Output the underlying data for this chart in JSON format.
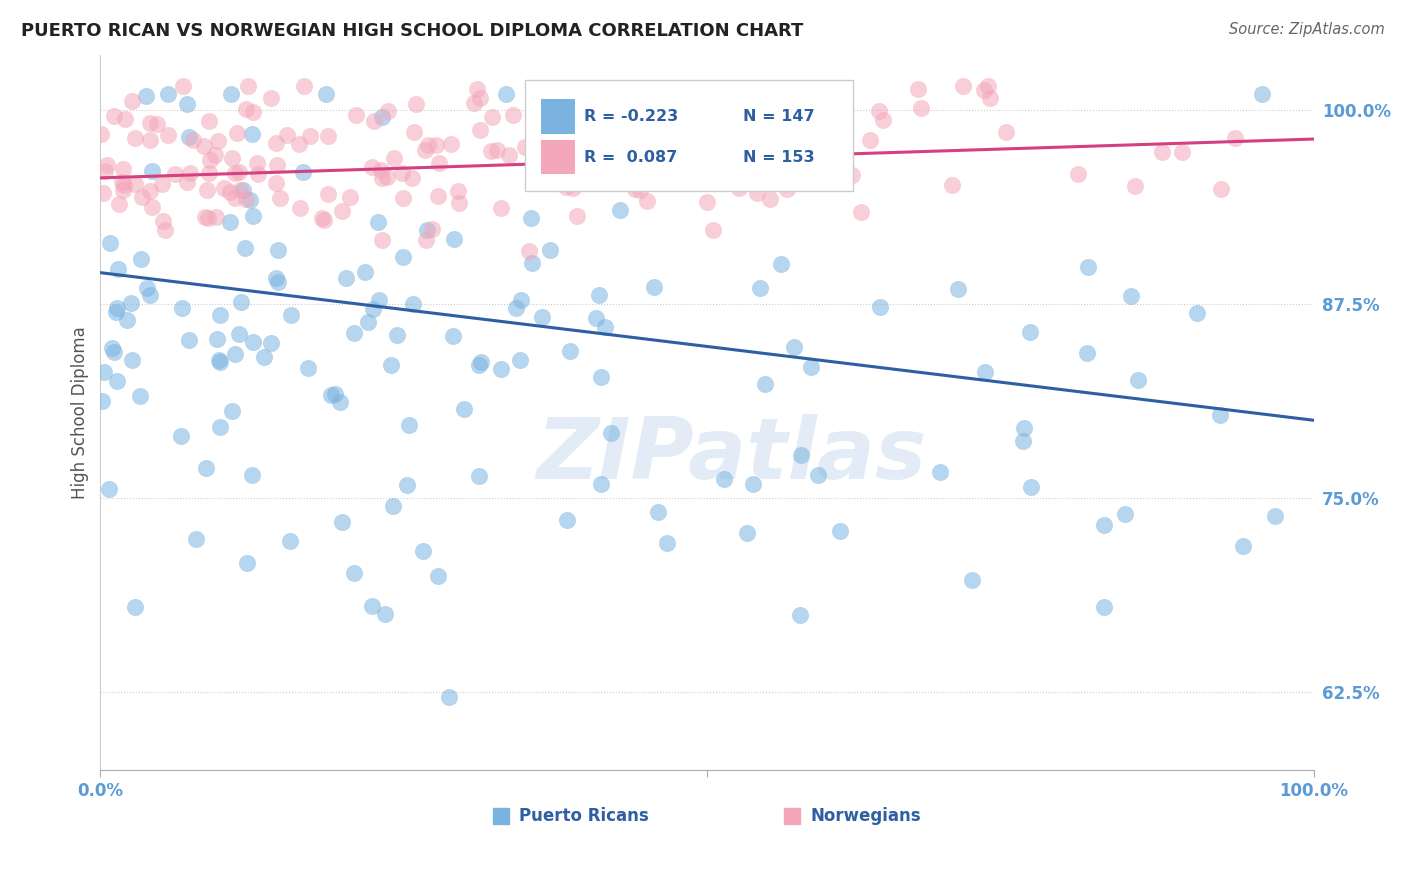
{
  "title": "PUERTO RICAN VS NORWEGIAN HIGH SCHOOL DIPLOMA CORRELATION CHART",
  "source": "Source: ZipAtlas.com",
  "ylabel": "High School Diploma",
  "xlim": [
    0.0,
    1.0
  ],
  "ylim": [
    0.575,
    1.035
  ],
  "yticks": [
    0.625,
    0.75,
    0.875,
    1.0
  ],
  "ytick_labels": [
    "62.5%",
    "75.0%",
    "87.5%",
    "100.0%"
  ],
  "blue_color": "#7ab3e0",
  "pink_color": "#f4a7b9",
  "blue_line_color": "#2e5fa3",
  "pink_line_color": "#d44080",
  "blue_intercept": 0.895,
  "blue_slope": -0.095,
  "pink_intercept": 0.956,
  "pink_slope": 0.025,
  "watermark": "ZIPatlas",
  "background_color": "#ffffff",
  "grid_color": "#cccccc",
  "title_color": "#222222",
  "tick_label_color": "#5b9bd5",
  "legend_text_color": "#2e5fa3"
}
